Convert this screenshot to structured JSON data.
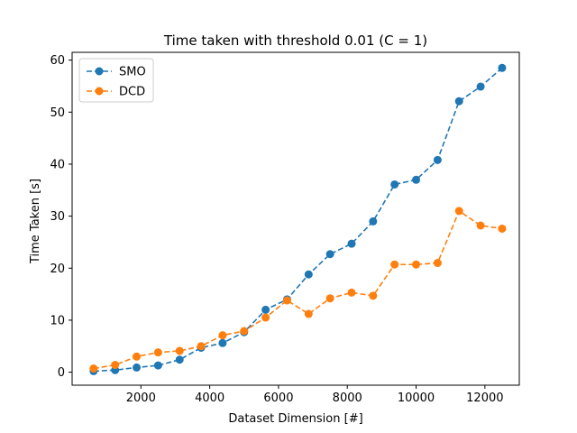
{
  "chart_data": {
    "type": "line",
    "title": "Time taken with threshold 0.01 (C = 1)",
    "xlabel": "Dataset Dimension [#]",
    "ylabel": "Time Taken [s]",
    "xlim": [
      0,
      13000
    ],
    "ylim": [
      -2.5,
      61.5
    ],
    "xticks": [
      2000,
      4000,
      6000,
      8000,
      10000,
      12000
    ],
    "yticks": [
      0,
      10,
      20,
      30,
      40,
      50,
      60
    ],
    "grid": false,
    "legend_position": "upper left",
    "x": [
      625,
      1250,
      1875,
      2500,
      3125,
      3750,
      4375,
      5000,
      5625,
      6250,
      6875,
      7500,
      8125,
      8750,
      9375,
      10000,
      10625,
      11250,
      11875,
      12500
    ],
    "series": [
      {
        "name": "SMO",
        "color": "#1f77b4",
        "linestyle": "dashed",
        "marker": "circle",
        "values": [
          0.2,
          0.4,
          0.9,
          1.3,
          2.4,
          4.7,
          5.6,
          7.7,
          12.0,
          14.0,
          18.8,
          22.7,
          24.7,
          29.0,
          36.1,
          37.0,
          40.8,
          52.1,
          54.9,
          58.5
        ]
      },
      {
        "name": "DCD",
        "color": "#ff7f0e",
        "linestyle": "dashed",
        "marker": "circle",
        "values": [
          0.7,
          1.4,
          3.0,
          3.8,
          4.1,
          5.0,
          7.1,
          7.9,
          10.5,
          13.8,
          11.2,
          14.2,
          15.3,
          14.7,
          20.7,
          20.7,
          21.0,
          31.0,
          28.2,
          27.6
        ]
      }
    ]
  }
}
